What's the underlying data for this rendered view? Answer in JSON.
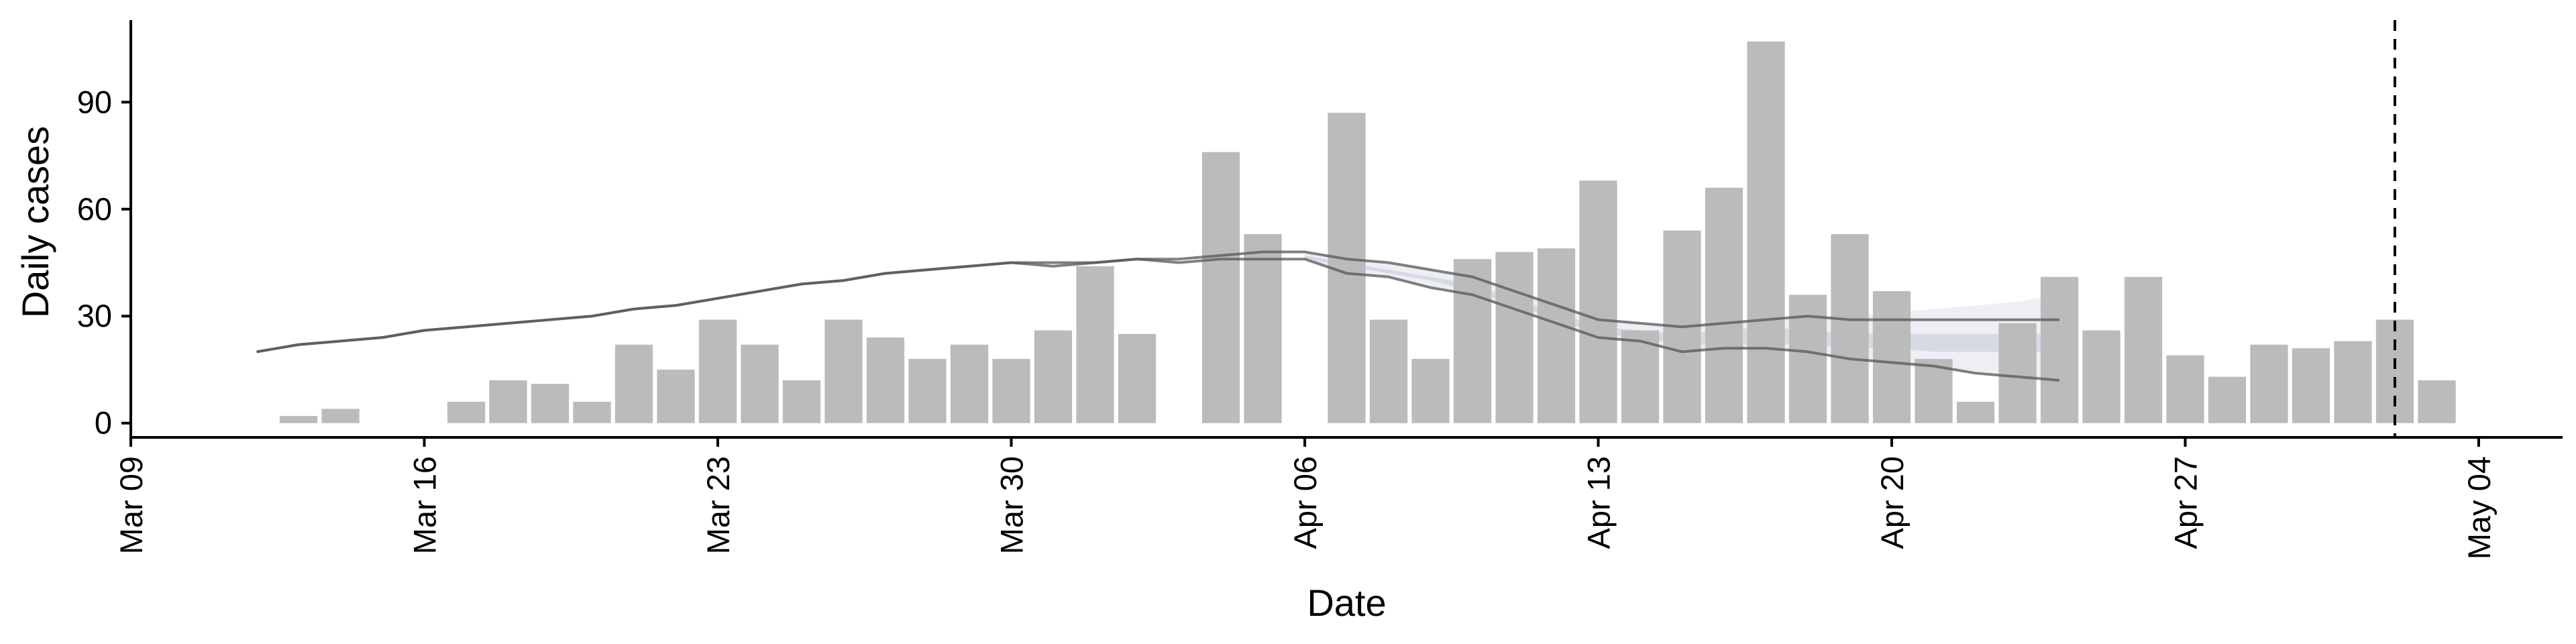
{
  "chart_data": {
    "type": "bar",
    "xlabel": "Date",
    "ylabel": "Daily cases",
    "ylim": [
      -4,
      113
    ],
    "yticks": [
      0,
      30,
      60,
      90
    ],
    "xlim": [
      "2020-03-09",
      "2020-05-06"
    ],
    "xticks": [
      {
        "date": "2020-03-09",
        "label": "Mar 09"
      },
      {
        "date": "2020-03-16",
        "label": "Mar 16"
      },
      {
        "date": "2020-03-23",
        "label": "Mar 23"
      },
      {
        "date": "2020-03-30",
        "label": "Mar 30"
      },
      {
        "date": "2020-04-06",
        "label": "Apr 06"
      },
      {
        "date": "2020-04-13",
        "label": "Apr 13"
      },
      {
        "date": "2020-04-20",
        "label": "Apr 20"
      },
      {
        "date": "2020-04-27",
        "label": "Apr 27"
      },
      {
        "date": "2020-05-04",
        "label": "May 04"
      }
    ],
    "grid": false,
    "colors": {
      "bars": "#bbbbbb",
      "lines": "#555555",
      "band": "#b8c0d2",
      "vline": "#000000"
    },
    "bars": {
      "dates": [
        "2020-03-13",
        "2020-03-14",
        "2020-03-17",
        "2020-03-18",
        "2020-03-19",
        "2020-03-20",
        "2020-03-21",
        "2020-03-22",
        "2020-03-23",
        "2020-03-24",
        "2020-03-25",
        "2020-03-26",
        "2020-03-27",
        "2020-03-28",
        "2020-03-29",
        "2020-03-30",
        "2020-03-31",
        "2020-04-01",
        "2020-04-02",
        "2020-04-04",
        "2020-04-05",
        "2020-04-07",
        "2020-04-08",
        "2020-04-09",
        "2020-04-10",
        "2020-04-11",
        "2020-04-12",
        "2020-04-13",
        "2020-04-14",
        "2020-04-15",
        "2020-04-16",
        "2020-04-17",
        "2020-04-18",
        "2020-04-19",
        "2020-04-20",
        "2020-04-21",
        "2020-04-22",
        "2020-04-23",
        "2020-04-24",
        "2020-04-25",
        "2020-04-26",
        "2020-04-27",
        "2020-04-28",
        "2020-04-29",
        "2020-04-30",
        "2020-05-01",
        "2020-05-02",
        "2020-05-03"
      ],
      "values": [
        2,
        4,
        6,
        12,
        11,
        6,
        22,
        15,
        29,
        22,
        12,
        29,
        24,
        18,
        22,
        18,
        26,
        44,
        25,
        76,
        53,
        87,
        29,
        18,
        46,
        48,
        49,
        68,
        26,
        54,
        66,
        107,
        36,
        53,
        37,
        18,
        6,
        28,
        41,
        26,
        41,
        19,
        13,
        22,
        21,
        23,
        29,
        12
      ]
    },
    "series": [
      {
        "dates": [
          "2020-03-12",
          "2020-03-13",
          "2020-03-14",
          "2020-03-15",
          "2020-03-16",
          "2020-03-17",
          "2020-03-18",
          "2020-03-19",
          "2020-03-20",
          "2020-03-21",
          "2020-03-22",
          "2020-03-23",
          "2020-03-24",
          "2020-03-25",
          "2020-03-26",
          "2020-03-27",
          "2020-03-28",
          "2020-03-29",
          "2020-03-30",
          "2020-03-31",
          "2020-04-01",
          "2020-04-02",
          "2020-04-03",
          "2020-04-04",
          "2020-04-05",
          "2020-04-06",
          "2020-04-07",
          "2020-04-08",
          "2020-04-09",
          "2020-04-10",
          "2020-04-11",
          "2020-04-12",
          "2020-04-13",
          "2020-04-14",
          "2020-04-15",
          "2020-04-16",
          "2020-04-17",
          "2020-04-18",
          "2020-04-19",
          "2020-04-20",
          "2020-04-21",
          "2020-04-22",
          "2020-04-23",
          "2020-04-24"
        ],
        "values": [
          20,
          22,
          23,
          24,
          26,
          27,
          28,
          29,
          30,
          32,
          33,
          35,
          37,
          39,
          40,
          42,
          43,
          44,
          45,
          45,
          45,
          46,
          46,
          47,
          48,
          48,
          46,
          45,
          43,
          41,
          37,
          33,
          29,
          28,
          27,
          28,
          29,
          30,
          29,
          29,
          29,
          29,
          29,
          29
        ]
      },
      {
        "dates": [
          "2020-03-12",
          "2020-03-13",
          "2020-03-14",
          "2020-03-15",
          "2020-03-16",
          "2020-03-17",
          "2020-03-18",
          "2020-03-19",
          "2020-03-20",
          "2020-03-21",
          "2020-03-22",
          "2020-03-23",
          "2020-03-24",
          "2020-03-25",
          "2020-03-26",
          "2020-03-27",
          "2020-03-28",
          "2020-03-29",
          "2020-03-30",
          "2020-03-31",
          "2020-04-01",
          "2020-04-02",
          "2020-04-03",
          "2020-04-04",
          "2020-04-05",
          "2020-04-06",
          "2020-04-07",
          "2020-04-08",
          "2020-04-09",
          "2020-04-10",
          "2020-04-11",
          "2020-04-12",
          "2020-04-13",
          "2020-04-14",
          "2020-04-15",
          "2020-04-16",
          "2020-04-17",
          "2020-04-18",
          "2020-04-19",
          "2020-04-20",
          "2020-04-21",
          "2020-04-22",
          "2020-04-23",
          "2020-04-24"
        ],
        "values": [
          20,
          22,
          23,
          24,
          26,
          27,
          28,
          29,
          30,
          32,
          33,
          35,
          37,
          39,
          40,
          42,
          43,
          44,
          45,
          44,
          45,
          46,
          45,
          46,
          46,
          46,
          42,
          41,
          38,
          36,
          32,
          28,
          24,
          23,
          20,
          21,
          21,
          20,
          18,
          17,
          16,
          14,
          13,
          12
        ]
      }
    ],
    "band": {
      "dates": [
        "2020-04-06",
        "2020-04-07",
        "2020-04-08",
        "2020-04-09",
        "2020-04-10",
        "2020-04-11",
        "2020-04-12",
        "2020-04-13",
        "2020-04-14",
        "2020-04-15",
        "2020-04-16",
        "2020-04-17",
        "2020-04-18",
        "2020-04-19",
        "2020-04-20",
        "2020-04-21",
        "2020-04-22",
        "2020-04-23",
        "2020-04-24"
      ],
      "upper": [
        48,
        46,
        45,
        43,
        41,
        37,
        33,
        29,
        28,
        27,
        28,
        29,
        30,
        30,
        31,
        32,
        33,
        34,
        36
      ],
      "lower": [
        46,
        42,
        41,
        38,
        36,
        32,
        28,
        24,
        23,
        20,
        21,
        21,
        20,
        18,
        17,
        15,
        14,
        13,
        12
      ],
      "inner_upper": [
        47,
        45,
        43,
        41,
        39,
        35,
        31,
        27,
        26,
        25,
        26,
        27,
        26,
        25,
        25,
        25,
        25,
        25,
        25
      ],
      "inner_lower": [
        46,
        44,
        42,
        40,
        37,
        33,
        29,
        25,
        24,
        22,
        22,
        22,
        22,
        21,
        21,
        20,
        20,
        20,
        20
      ]
    },
    "vline_date": "2020-05-02"
  }
}
